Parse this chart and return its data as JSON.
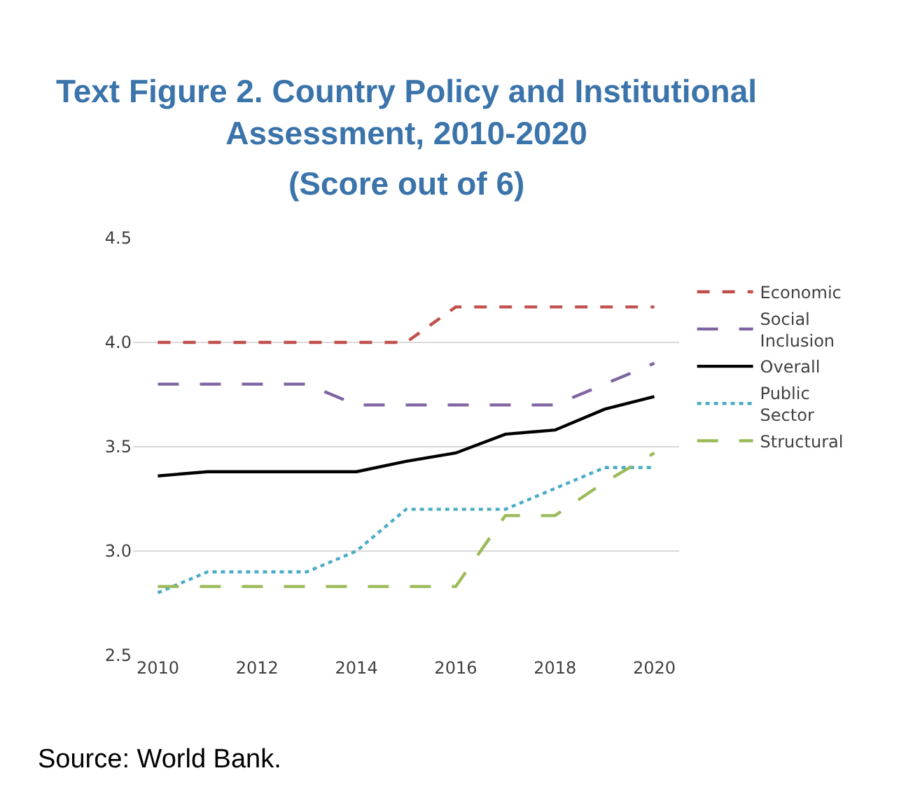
{
  "chart_data": {
    "type": "line",
    "title": "Text Figure 2. Country Policy and Institutional Assessment, 2010-2020",
    "subtitle": "(Score out of 6)",
    "x": [
      2010,
      2011,
      2012,
      2013,
      2014,
      2015,
      2016,
      2017,
      2018,
      2019,
      2020
    ],
    "series": [
      {
        "name": "Economic",
        "color": "#c0504d",
        "line_style": "dashed",
        "values": [
          4.0,
          4.0,
          4.0,
          4.0,
          4.0,
          4.0,
          4.17,
          4.17,
          4.17,
          4.17,
          4.17
        ]
      },
      {
        "name": "Social Inclusion",
        "color": "#8064a2",
        "line_style": "longdash",
        "values": [
          3.8,
          3.8,
          3.8,
          3.8,
          3.7,
          3.7,
          3.7,
          3.7,
          3.7,
          3.8,
          3.9
        ]
      },
      {
        "name": "Overall",
        "color": "#000000",
        "line_style": "solid",
        "values": [
          3.36,
          3.38,
          3.38,
          3.38,
          3.38,
          3.43,
          3.47,
          3.56,
          3.58,
          3.68,
          3.74
        ]
      },
      {
        "name": "Public Sector",
        "color": "#4bacc6",
        "line_style": "dotted",
        "values": [
          2.8,
          2.9,
          2.9,
          2.9,
          3.0,
          3.2,
          3.2,
          3.2,
          3.3,
          3.4,
          3.4
        ]
      },
      {
        "name": "Structural",
        "color": "#9bbb59",
        "line_style": "longdash",
        "values": [
          2.83,
          2.83,
          2.83,
          2.83,
          2.83,
          2.83,
          2.83,
          3.17,
          3.17,
          3.33,
          3.47
        ]
      }
    ],
    "xlim": [
      2009.5,
      2020.5
    ],
    "xticks": [
      2010,
      2012,
      2014,
      2016,
      2018,
      2020
    ],
    "ylim": [
      2.5,
      4.5
    ],
    "yticks": [
      {
        "value": 2.5,
        "label": "2.5"
      },
      {
        "value": 3.0,
        "label": "3.0"
      },
      {
        "value": 3.5,
        "label": "3.5"
      },
      {
        "value": 4.0,
        "label": "4.0"
      },
      {
        "value": 4.5,
        "label": "4.5"
      }
    ],
    "grid": "y",
    "legend": "right",
    "annotations": [
      "Source: World Bank."
    ]
  }
}
